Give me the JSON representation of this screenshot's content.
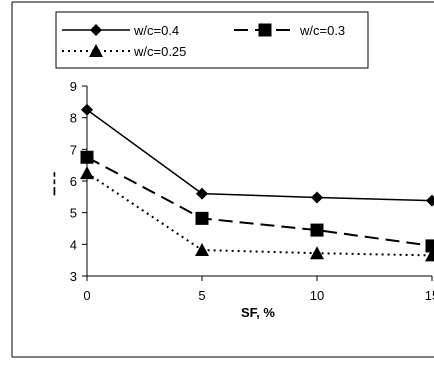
{
  "chart_data": {
    "type": "line",
    "title": "",
    "xlabel": "SF, %",
    "ylabel": "",
    "x": [
      0,
      5,
      10,
      15
    ],
    "xticks": [
      "0",
      "5",
      "10",
      "15"
    ],
    "yticks": [
      "3",
      "4",
      "5",
      "6",
      "7",
      "8",
      "9"
    ],
    "xlim": [
      0,
      15
    ],
    "ylim": [
      3,
      9
    ],
    "grid": false,
    "legend_position": "top",
    "series": [
      {
        "name": "w/c=0.4",
        "values": [
          8.25,
          5.6,
          5.48,
          5.38
        ],
        "marker": "diamond",
        "dash": "solid",
        "color": "#000000"
      },
      {
        "name": "w/c=0.3",
        "values": [
          6.75,
          4.82,
          4.45,
          3.95
        ],
        "marker": "square",
        "dash": "long-dash",
        "color": "#000000"
      },
      {
        "name": "w/c=0.25",
        "values": [
          6.25,
          3.82,
          3.72,
          3.65
        ],
        "marker": "triangle",
        "dash": "dotted",
        "color": "#000000"
      }
    ]
  }
}
